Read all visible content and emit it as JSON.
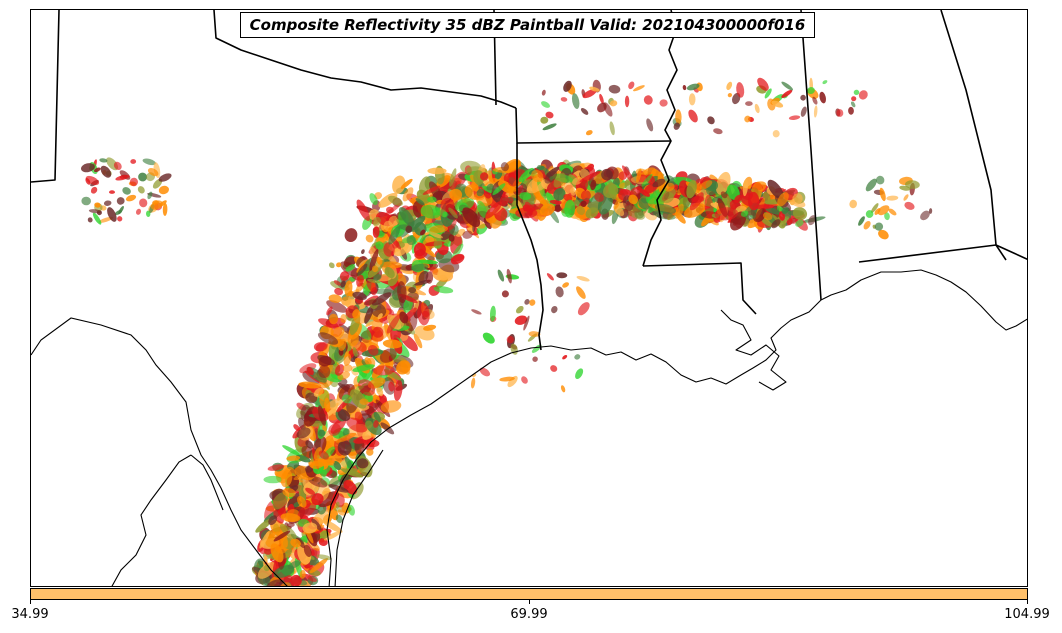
{
  "title": "Composite Reflectivity 35 dBZ Paintball Valid: 202104300000f016",
  "colorbar": {
    "color": "#ffc06a",
    "ticks": [
      "34.99",
      "69.99",
      "104.99"
    ]
  },
  "palette": {
    "orange": "#ff8c00",
    "light_orange": "#ffb347",
    "red": "#e3171b",
    "dark_red": "#8b1a1a",
    "green": "#2fd52f",
    "olive": "#8f9a2c",
    "dark_green": "#3f7f3f",
    "maroon": "#6b2a2a"
  },
  "map": {
    "region": "south-central-us-gulf-coast",
    "boundaries": [
      "state-borders",
      "coastline",
      "country-border"
    ]
  }
}
